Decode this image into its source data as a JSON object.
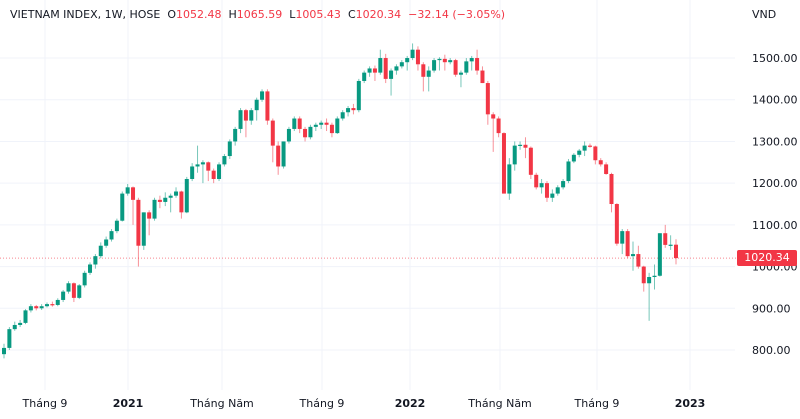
{
  "legend": {
    "symbol": "VIETNAM INDEX, 1W, HOSE",
    "open_label": "O",
    "open": "1052.48",
    "high_label": "H",
    "high": "1065.59",
    "low_label": "L",
    "low": "1005.43",
    "close_label": "C",
    "close": "1020.34",
    "change": "−32.14 (−3.05%)"
  },
  "chart_data": {
    "type": "candlestick",
    "title": "VIETNAM INDEX, 1W, HOSE",
    "ylabel": "VND",
    "ylim": [
      760,
      1570
    ],
    "yticks": [
      "800.00",
      "900.00",
      "1000.00",
      "1100.00",
      "1200.00",
      "1300.00",
      "1400.00",
      "1500.00"
    ],
    "xticks": [
      "Tháng 9",
      "2021",
      "Tháng Năm",
      "Tháng 9",
      "2022",
      "Tháng Năm",
      "Tháng 9",
      "2023"
    ],
    "last_price": "1020.34",
    "grid": true,
    "colors": {
      "up": "#089981",
      "down": "#f23645",
      "grid": "#f0f3fa"
    },
    "candles_ohlc": [
      [
        790,
        815,
        780,
        805
      ],
      [
        805,
        855,
        800,
        850
      ],
      [
        850,
        868,
        846,
        860
      ],
      [
        860,
        872,
        855,
        865
      ],
      [
        865,
        898,
        862,
        895
      ],
      [
        895,
        910,
        890,
        905
      ],
      [
        905,
        908,
        895,
        900
      ],
      [
        900,
        910,
        896,
        905
      ],
      [
        905,
        914,
        902,
        910
      ],
      [
        910,
        916,
        904,
        908
      ],
      [
        908,
        924,
        905,
        920
      ],
      [
        920,
        944,
        915,
        940
      ],
      [
        940,
        965,
        935,
        960
      ],
      [
        960,
        962,
        915,
        925
      ],
      [
        925,
        958,
        922,
        955
      ],
      [
        955,
        990,
        950,
        985
      ],
      [
        985,
        1010,
        980,
        1005
      ],
      [
        1005,
        1030,
        995,
        1025
      ],
      [
        1025,
        1058,
        1020,
        1050
      ],
      [
        1050,
        1072,
        1045,
        1065
      ],
      [
        1065,
        1090,
        1060,
        1085
      ],
      [
        1085,
        1115,
        1080,
        1110
      ],
      [
        1110,
        1180,
        1108,
        1175
      ],
      [
        1175,
        1198,
        1170,
        1190
      ],
      [
        1190,
        1192,
        1100,
        1160
      ],
      [
        1160,
        1165,
        1000,
        1050
      ],
      [
        1050,
        1130,
        1040,
        1130
      ],
      [
        1130,
        1135,
        1075,
        1115
      ],
      [
        1115,
        1165,
        1110,
        1160
      ],
      [
        1160,
        1170,
        1140,
        1155
      ],
      [
        1155,
        1178,
        1145,
        1165
      ],
      [
        1165,
        1175,
        1130,
        1170
      ],
      [
        1170,
        1190,
        1165,
        1180
      ],
      [
        1180,
        1182,
        1115,
        1130
      ],
      [
        1130,
        1215,
        1128,
        1210
      ],
      [
        1210,
        1248,
        1205,
        1240
      ],
      [
        1240,
        1290,
        1225,
        1245
      ],
      [
        1245,
        1255,
        1200,
        1250
      ],
      [
        1250,
        1252,
        1205,
        1230
      ],
      [
        1230,
        1235,
        1200,
        1210
      ],
      [
        1210,
        1250,
        1205,
        1245
      ],
      [
        1245,
        1270,
        1240,
        1265
      ],
      [
        1265,
        1305,
        1258,
        1300
      ],
      [
        1300,
        1335,
        1290,
        1330
      ],
      [
        1330,
        1380,
        1320,
        1375
      ],
      [
        1375,
        1378,
        1310,
        1350
      ],
      [
        1350,
        1380,
        1340,
        1375
      ],
      [
        1375,
        1405,
        1350,
        1400
      ],
      [
        1400,
        1425,
        1395,
        1420
      ],
      [
        1420,
        1425,
        1340,
        1350
      ],
      [
        1350,
        1355,
        1250,
        1290
      ],
      [
        1290,
        1300,
        1220,
        1240
      ],
      [
        1240,
        1300,
        1235,
        1300
      ],
      [
        1300,
        1335,
        1295,
        1330
      ],
      [
        1330,
        1360,
        1325,
        1355
      ],
      [
        1355,
        1360,
        1320,
        1330
      ],
      [
        1330,
        1335,
        1300,
        1310
      ],
      [
        1310,
        1340,
        1305,
        1335
      ],
      [
        1335,
        1345,
        1325,
        1340
      ],
      [
        1340,
        1350,
        1330,
        1345
      ],
      [
        1345,
        1355,
        1325,
        1340
      ],
      [
        1340,
        1345,
        1310,
        1320
      ],
      [
        1320,
        1360,
        1318,
        1355
      ],
      [
        1355,
        1375,
        1350,
        1370
      ],
      [
        1370,
        1385,
        1360,
        1380
      ],
      [
        1380,
        1390,
        1365,
        1375
      ],
      [
        1375,
        1450,
        1370,
        1445
      ],
      [
        1445,
        1470,
        1440,
        1465
      ],
      [
        1465,
        1480,
        1455,
        1475
      ],
      [
        1475,
        1482,
        1445,
        1465
      ],
      [
        1465,
        1520,
        1460,
        1500
      ],
      [
        1500,
        1510,
        1440,
        1450
      ],
      [
        1450,
        1475,
        1410,
        1470
      ],
      [
        1470,
        1485,
        1460,
        1480
      ],
      [
        1480,
        1495,
        1475,
        1490
      ],
      [
        1490,
        1505,
        1470,
        1500
      ],
      [
        1500,
        1535,
        1495,
        1520
      ],
      [
        1520,
        1528,
        1470,
        1485
      ],
      [
        1485,
        1490,
        1420,
        1455
      ],
      [
        1455,
        1480,
        1420,
        1470
      ],
      [
        1470,
        1500,
        1465,
        1495
      ],
      [
        1495,
        1502,
        1470,
        1498
      ],
      [
        1498,
        1508,
        1470,
        1490
      ],
      [
        1490,
        1500,
        1485,
        1495
      ],
      [
        1495,
        1498,
        1455,
        1460
      ],
      [
        1460,
        1470,
        1430,
        1465
      ],
      [
        1465,
        1500,
        1460,
        1492
      ],
      [
        1492,
        1505,
        1470,
        1500
      ],
      [
        1500,
        1520,
        1460,
        1470
      ],
      [
        1470,
        1480,
        1440,
        1440
      ],
      [
        1440,
        1445,
        1340,
        1365
      ],
      [
        1365,
        1370,
        1275,
        1355
      ],
      [
        1355,
        1360,
        1310,
        1320
      ],
      [
        1320,
        1322,
        1175,
        1175
      ],
      [
        1175,
        1260,
        1160,
        1245
      ],
      [
        1245,
        1300,
        1230,
        1290
      ],
      [
        1290,
        1300,
        1280,
        1292
      ],
      [
        1292,
        1310,
        1260,
        1285
      ],
      [
        1285,
        1288,
        1210,
        1220
      ],
      [
        1220,
        1225,
        1185,
        1190
      ],
      [
        1190,
        1210,
        1175,
        1200
      ],
      [
        1200,
        1205,
        1155,
        1165
      ],
      [
        1165,
        1185,
        1155,
        1175
      ],
      [
        1175,
        1195,
        1170,
        1190
      ],
      [
        1190,
        1210,
        1185,
        1205
      ],
      [
        1205,
        1258,
        1200,
        1252
      ],
      [
        1252,
        1272,
        1248,
        1268
      ],
      [
        1268,
        1282,
        1262,
        1278
      ],
      [
        1278,
        1300,
        1265,
        1290
      ],
      [
        1290,
        1295,
        1285,
        1288
      ],
      [
        1288,
        1290,
        1245,
        1255
      ],
      [
        1255,
        1260,
        1240,
        1245
      ],
      [
        1245,
        1250,
        1220,
        1222
      ],
      [
        1222,
        1225,
        1130,
        1150
      ],
      [
        1150,
        1152,
        1050,
        1055
      ],
      [
        1055,
        1090,
        1030,
        1085
      ],
      [
        1085,
        1090,
        1020,
        1025
      ],
      [
        1025,
        1060,
        990,
        1030
      ],
      [
        1030,
        1050,
        995,
        1000
      ],
      [
        1000,
        1002,
        940,
        960
      ],
      [
        960,
        985,
        870,
        975
      ],
      [
        975,
        1005,
        945,
        978
      ],
      [
        978,
        1080,
        976,
        1080
      ],
      [
        1080,
        1100,
        1045,
        1052
      ],
      [
        1052,
        1075,
        1040,
        1052.48
      ],
      [
        1052.48,
        1065.59,
        1005.43,
        1020.34
      ]
    ]
  }
}
